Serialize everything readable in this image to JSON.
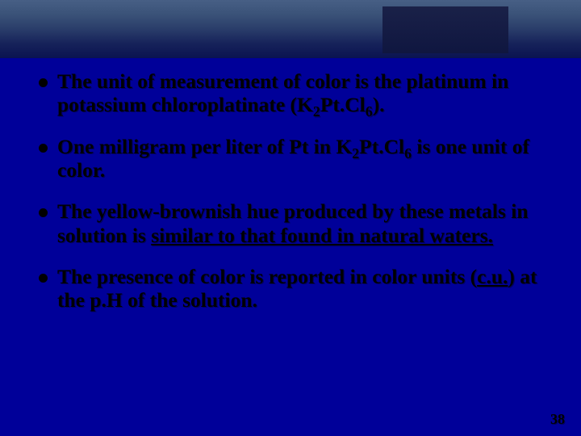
{
  "slide": {
    "background_color": "#000099",
    "top_bar_gradient": [
      "#475f85",
      "#3a5278",
      "#2a3d6a",
      "#16225a",
      "#0a1351"
    ],
    "dark_box_gradient": [
      "#1a2148",
      "#0f1640"
    ],
    "text_color": "#000000",
    "font_family": "Times New Roman",
    "body_fontsize_pt": 19,
    "page_number": "38",
    "bullets": [
      {
        "pre": "The unit of measurement of color is the platinum in potassium chloroplatinate (K",
        "sub1": "2",
        "mid1": "Pt.Cl",
        "sub2": "6",
        "post": ")."
      },
      {
        "pre": "One milligram per liter of Pt in K",
        "sub1": "2",
        "mid1": "Pt.Cl",
        "sub2": "6",
        "post": " is one unit of color."
      },
      {
        "pre": "The yellow-brownish hue produced by these metals in solution is ",
        "u1": "similar to that found in natural waters.",
        "post": ""
      },
      {
        "pre": "The presence of color is reported in color units (",
        "u1": "c.u.",
        "post": ") at the p.H of the solution."
      }
    ]
  }
}
